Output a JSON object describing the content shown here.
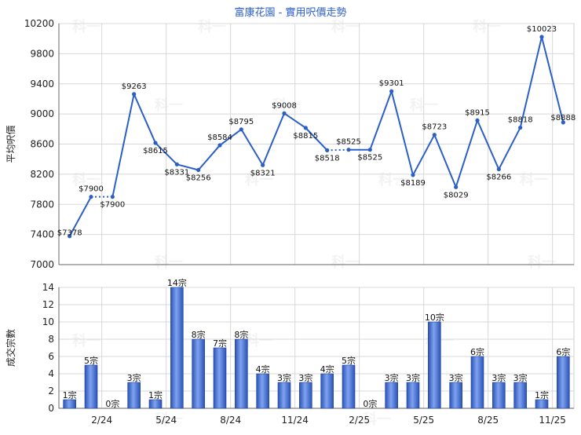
{
  "chart_data": [
    {
      "type": "line",
      "title": "富康花園 - 實用呎價走勢",
      "ylabel": "平均呎價",
      "ylim": [
        7000,
        10200
      ],
      "yticks": [
        7000,
        7400,
        7800,
        8200,
        8600,
        9000,
        9400,
        9800,
        10200
      ],
      "x_tick_labels": [
        "2/24",
        "5/24",
        "8/24",
        "11/24",
        "2/25",
        "5/25",
        "8/25",
        "11/25"
      ],
      "grid": true,
      "series": [
        {
          "values": [
            7378,
            7900,
            7900,
            9263,
            8615,
            8331,
            8256,
            8584,
            8795,
            8321,
            9008,
            8815,
            8518,
            8525,
            8525,
            9301,
            8189,
            8723,
            8029,
            8915,
            8266,
            8818,
            10023,
            8888
          ],
          "labels": [
            "$7378",
            "$7900",
            "$7900",
            "$9263",
            "$8615",
            "$8331",
            "$8256",
            "$8584",
            "$8795",
            "$8321",
            "$9008",
            "$8815",
            "$8518",
            "$8525",
            "$8525",
            "$9301",
            "$8189",
            "$8723",
            "$8029",
            "$8915",
            "$8266",
            "$8818",
            "$10023",
            "$8888"
          ],
          "dotted_from": [
            1,
            12
          ]
        }
      ]
    },
    {
      "type": "bar",
      "ylabel": "成交宗數",
      "ylim": [
        0,
        14
      ],
      "yticks": [
        0,
        2,
        4,
        6,
        8,
        10,
        12,
        14
      ],
      "x_tick_labels": [
        "2/24",
        "5/24",
        "8/24",
        "11/24",
        "2/25",
        "5/25",
        "8/25",
        "11/25"
      ],
      "grid": true,
      "values": [
        1,
        5,
        0,
        3,
        1,
        14,
        8,
        7,
        8,
        4,
        3,
        3,
        4,
        5,
        0,
        3,
        3,
        10,
        3,
        6,
        3,
        3,
        1,
        6
      ],
      "labels": [
        "1宗",
        "5宗",
        "0宗",
        "3宗",
        "1宗",
        "14宗",
        "8宗",
        "7宗",
        "8宗",
        "4宗",
        "3宗",
        "3宗",
        "4宗",
        "5宗",
        "0宗",
        "3宗",
        "3宗",
        "10宗",
        "3宗",
        "6宗",
        "3宗",
        "3宗",
        "1宗",
        "6宗"
      ]
    }
  ],
  "watermark": "科一",
  "colors": {
    "line": "#2b5fc7",
    "bar_dark": "#2a52b8",
    "bar_light": "#7fa3ee",
    "grid": "#d8d8d8",
    "title": "#2b5fc7"
  }
}
